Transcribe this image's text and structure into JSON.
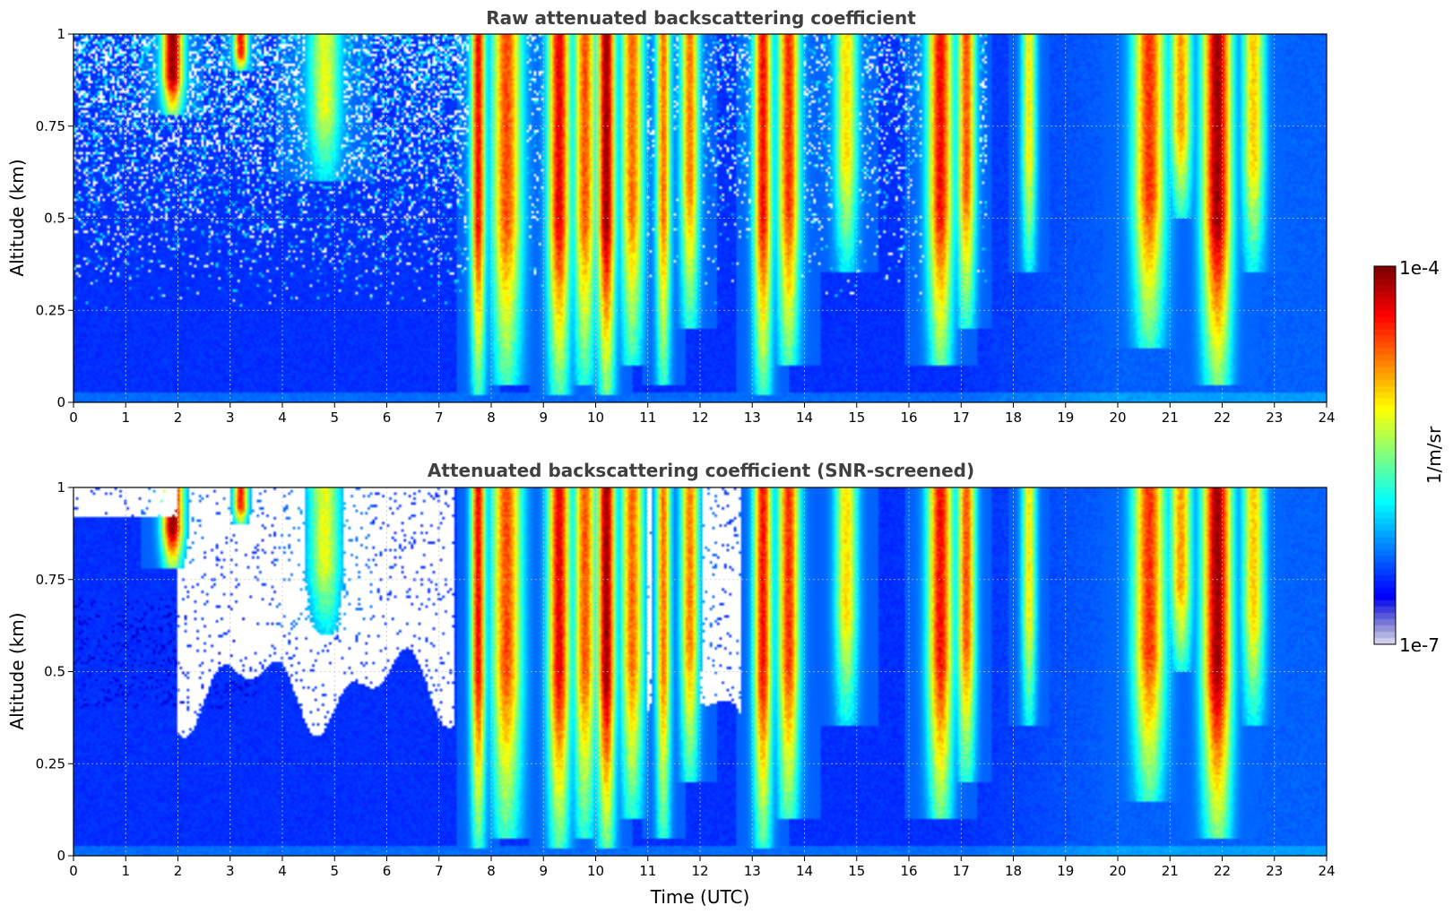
{
  "chart_data": [
    {
      "type": "heatmap",
      "title": "Raw attenuated backscattering coefficient",
      "xlabel": "",
      "ylabel": "Altitude (km)",
      "xlim": [
        0,
        24
      ],
      "ylim": [
        0,
        1
      ],
      "x_ticks": [
        "0",
        "1",
        "2",
        "3",
        "4",
        "5",
        "6",
        "7",
        "8",
        "9",
        "10",
        "11",
        "12",
        "13",
        "14",
        "15",
        "16",
        "17",
        "18",
        "19",
        "20",
        "21",
        "22",
        "23",
        "24"
      ],
      "y_ticks": [
        "0",
        "0.25",
        "0.5",
        "0.75",
        "1"
      ],
      "grid": true,
      "colormap": "jet",
      "color_scale": "log",
      "vmin": "1e-7",
      "vmax": "1e-4",
      "screened": false,
      "cloud_events": [
        {
          "t": 1.9,
          "w": 0.3,
          "base": 0.78,
          "peak": 5.0
        },
        {
          "t": 3.2,
          "w": 0.2,
          "base": 0.9,
          "peak": 4.0
        },
        {
          "t": 4.8,
          "w": 0.45,
          "base": 0.6,
          "peak": 2.5
        },
        {
          "t": 7.75,
          "w": 0.2,
          "base": 0.02,
          "peak": 4.4
        },
        {
          "t": 8.3,
          "w": 0.4,
          "base": 0.05,
          "peak": 3.7
        },
        {
          "t": 9.3,
          "w": 0.3,
          "base": 0.02,
          "peak": 4.5
        },
        {
          "t": 9.8,
          "w": 0.3,
          "base": 0.05,
          "peak": 3.8
        },
        {
          "t": 10.2,
          "w": 0.25,
          "base": 0.02,
          "peak": 5.0
        },
        {
          "t": 10.7,
          "w": 0.3,
          "base": 0.1,
          "peak": 3.6
        },
        {
          "t": 11.3,
          "w": 0.2,
          "base": 0.05,
          "peak": 3.3
        },
        {
          "t": 11.8,
          "w": 0.25,
          "base": 0.2,
          "peak": 3.4
        },
        {
          "t": 13.2,
          "w": 0.25,
          "base": 0.02,
          "peak": 4.3
        },
        {
          "t": 13.7,
          "w": 0.3,
          "base": 0.1,
          "peak": 3.8
        },
        {
          "t": 14.8,
          "w": 0.3,
          "base": 0.35,
          "peak": 3.0
        },
        {
          "t": 16.6,
          "w": 0.35,
          "base": 0.1,
          "peak": 4.0
        },
        {
          "t": 17.1,
          "w": 0.25,
          "base": 0.2,
          "peak": 3.8
        },
        {
          "t": 18.3,
          "w": 0.2,
          "base": 0.35,
          "peak": 2.6
        },
        {
          "t": 20.6,
          "w": 0.45,
          "base": 0.15,
          "peak": 3.9
        },
        {
          "t": 21.2,
          "w": 0.3,
          "base": 0.5,
          "peak": 3.2
        },
        {
          "t": 21.9,
          "w": 0.4,
          "base": 0.05,
          "peak": 4.8
        },
        {
          "t": 22.6,
          "w": 0.3,
          "base": 0.35,
          "peak": 3.1
        }
      ]
    },
    {
      "type": "heatmap",
      "title": "Attenuated backscattering coefficient (SNR-screened)",
      "xlabel": "Time (UTC)",
      "ylabel": "Altitude (km)",
      "xlim": [
        0,
        24
      ],
      "ylim": [
        0,
        1
      ],
      "x_ticks": [
        "0",
        "1",
        "2",
        "3",
        "4",
        "5",
        "6",
        "7",
        "8",
        "9",
        "10",
        "11",
        "12",
        "13",
        "14",
        "15",
        "16",
        "17",
        "18",
        "19",
        "20",
        "21",
        "22",
        "23",
        "24"
      ],
      "y_ticks": [
        "0",
        "0.25",
        "0.5",
        "0.75",
        "1"
      ],
      "grid": true,
      "colormap": "jet",
      "color_scale": "log",
      "vmin": "1e-7",
      "vmax": "1e-4",
      "screened": true,
      "cloud_events": [
        {
          "t": 1.9,
          "w": 0.3,
          "base": 0.78,
          "peak": 5.0
        },
        {
          "t": 3.2,
          "w": 0.2,
          "base": 0.9,
          "peak": 4.0
        },
        {
          "t": 4.8,
          "w": 0.45,
          "base": 0.6,
          "peak": 2.5
        },
        {
          "t": 7.75,
          "w": 0.2,
          "base": 0.02,
          "peak": 4.4
        },
        {
          "t": 8.3,
          "w": 0.4,
          "base": 0.05,
          "peak": 3.7
        },
        {
          "t": 9.3,
          "w": 0.3,
          "base": 0.02,
          "peak": 4.5
        },
        {
          "t": 9.8,
          "w": 0.3,
          "base": 0.05,
          "peak": 3.8
        },
        {
          "t": 10.2,
          "w": 0.25,
          "base": 0.02,
          "peak": 5.0
        },
        {
          "t": 10.7,
          "w": 0.3,
          "base": 0.1,
          "peak": 3.6
        },
        {
          "t": 11.3,
          "w": 0.2,
          "base": 0.05,
          "peak": 3.3
        },
        {
          "t": 11.8,
          "w": 0.25,
          "base": 0.2,
          "peak": 3.4
        },
        {
          "t": 13.2,
          "w": 0.25,
          "base": 0.02,
          "peak": 4.3
        },
        {
          "t": 13.7,
          "w": 0.3,
          "base": 0.1,
          "peak": 3.8
        },
        {
          "t": 14.8,
          "w": 0.3,
          "base": 0.35,
          "peak": 3.0
        },
        {
          "t": 16.6,
          "w": 0.35,
          "base": 0.1,
          "peak": 4.0
        },
        {
          "t": 17.1,
          "w": 0.25,
          "base": 0.2,
          "peak": 3.8
        },
        {
          "t": 18.3,
          "w": 0.2,
          "base": 0.35,
          "peak": 2.6
        },
        {
          "t": 20.6,
          "w": 0.45,
          "base": 0.15,
          "peak": 3.9
        },
        {
          "t": 21.2,
          "w": 0.3,
          "base": 0.5,
          "peak": 3.2
        },
        {
          "t": 21.9,
          "w": 0.4,
          "base": 0.05,
          "peak": 4.8
        },
        {
          "t": 22.6,
          "w": 0.3,
          "base": 0.35,
          "peak": 3.1
        }
      ]
    }
  ],
  "colorbar": {
    "label": "1/m/sr",
    "max_label": "1e-4",
    "min_label": "1e-7"
  }
}
